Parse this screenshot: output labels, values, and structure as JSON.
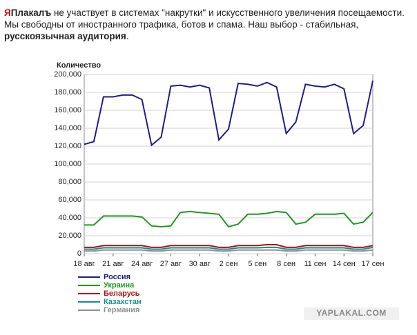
{
  "intro": {
    "brand_red": "Я",
    "brand_bold": "Плакалъ",
    "text": " не участвует в системах \"накрутки\" и искусственного увеличения посещаемости. Мы свободны от иностранного трафика, ботов и спама. Наш выбор - стабильная, ",
    "bold": "русскоязычная аудитория",
    "end": "."
  },
  "watermark": "YAPLAKAL.COM",
  "chart_data": {
    "type": "line",
    "y_label": "Количество",
    "categories": [
      "18 авг",
      null,
      null,
      "21 авг",
      null,
      null,
      "24 авг",
      null,
      null,
      "27 авг",
      null,
      null,
      "30 авг",
      null,
      null,
      "2 сен",
      null,
      null,
      "5 сен",
      null,
      null,
      "8 сен",
      null,
      null,
      "11 сен",
      null,
      null,
      "14 сен",
      null,
      null,
      "17 сен"
    ],
    "ylim": [
      0,
      200000
    ],
    "yticks": [
      0,
      {
        "value": 20000,
        "label": "20,000"
      },
      {
        "value": 40000,
        "label": "40,000"
      },
      {
        "value": 60000,
        "label": "60,000"
      },
      {
        "value": 80000,
        "label": "80,000"
      },
      {
        "value": 100000,
        "label": "100,000"
      },
      {
        "value": 120000,
        "label": "120,000"
      },
      {
        "value": 140000,
        "label": "140,000"
      },
      {
        "value": 160000,
        "label": "160,000"
      },
      {
        "value": 180000,
        "label": "180,000"
      },
      {
        "value": 200000,
        "label": "200,000"
      }
    ],
    "grid": true,
    "series": [
      {
        "name": "Россия",
        "color": "#1c1c8c",
        "values": [
          122000,
          125000,
          175000,
          175000,
          177000,
          177000,
          172000,
          121000,
          130000,
          187000,
          188000,
          186000,
          188000,
          185000,
          127000,
          139000,
          190000,
          189000,
          187000,
          191000,
          186000,
          134000,
          147000,
          189000,
          187000,
          186000,
          189000,
          184000,
          134000,
          143000,
          193000
        ]
      },
      {
        "name": "Украина",
        "color": "#1a9a1a",
        "values": [
          32000,
          32000,
          42000,
          42000,
          42000,
          42000,
          41000,
          31000,
          30000,
          31000,
          46000,
          47000,
          46000,
          45000,
          44000,
          30000,
          33000,
          44000,
          44000,
          45000,
          47000,
          46000,
          33000,
          35000,
          44000,
          44000,
          44000,
          45000,
          33000,
          35000,
          46000
        ]
      },
      {
        "name": "Беларусь",
        "color": "#b01010",
        "values": [
          7000,
          7000,
          9000,
          9000,
          9000,
          9000,
          9000,
          7000,
          7000,
          9000,
          9000,
          9000,
          9000,
          9000,
          7000,
          7000,
          9000,
          9000,
          9000,
          10000,
          10000,
          7000,
          7000,
          9000,
          9000,
          9000,
          9000,
          9000,
          7000,
          7000,
          9000
        ]
      },
      {
        "name": "Казахстан",
        "color": "#109090",
        "values": [
          5000,
          5000,
          6500,
          6500,
          6500,
          6500,
          6500,
          5000,
          5000,
          6500,
          6500,
          6500,
          6500,
          6500,
          5000,
          5000,
          6500,
          6500,
          6500,
          7000,
          7000,
          5000,
          5000,
          6500,
          6500,
          6500,
          6500,
          6500,
          5000,
          5000,
          7000
        ]
      },
      {
        "name": "Германия",
        "color": "#909090",
        "values": [
          3000,
          3000,
          4000,
          4000,
          4000,
          4000,
          4000,
          3000,
          3000,
          4000,
          4000,
          4000,
          4000,
          4000,
          3000,
          3000,
          4000,
          4000,
          4000,
          4000,
          4000,
          3000,
          3000,
          4000,
          4000,
          4000,
          4000,
          4000,
          3000,
          3000,
          4000
        ]
      }
    ]
  }
}
